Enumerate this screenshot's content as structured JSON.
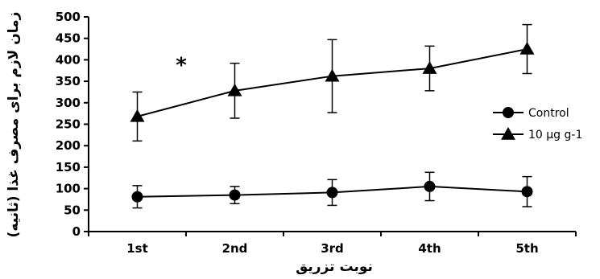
{
  "chart_data": {
    "type": "line",
    "categories": [
      "1st",
      "2nd",
      "3rd",
      "4th",
      "5th"
    ],
    "series": [
      {
        "name": "Control",
        "marker": "circle",
        "values": [
          81,
          85,
          91,
          105,
          93
        ],
        "error": [
          26,
          20,
          30,
          33,
          35
        ]
      },
      {
        "name": "10 µg g-1",
        "marker": "triangle",
        "values": [
          268,
          328,
          362,
          380,
          425
        ],
        "error": [
          57,
          64,
          85,
          52,
          57
        ]
      }
    ],
    "xlabel": "نوبت تزریق",
    "ylabel": "زمان لازم برای مصرف غذا (ثانیه)",
    "ylim": [
      0,
      500
    ],
    "yticks": [
      0,
      50,
      100,
      150,
      200,
      250,
      300,
      350,
      400,
      450,
      500
    ],
    "annotations": [
      {
        "text": "*",
        "category": "1st",
        "y": 398,
        "offset": 0.5
      }
    ],
    "legend": "right",
    "grid": false,
    "colors": {
      "line": "#000000",
      "background": "#ffffff"
    }
  }
}
